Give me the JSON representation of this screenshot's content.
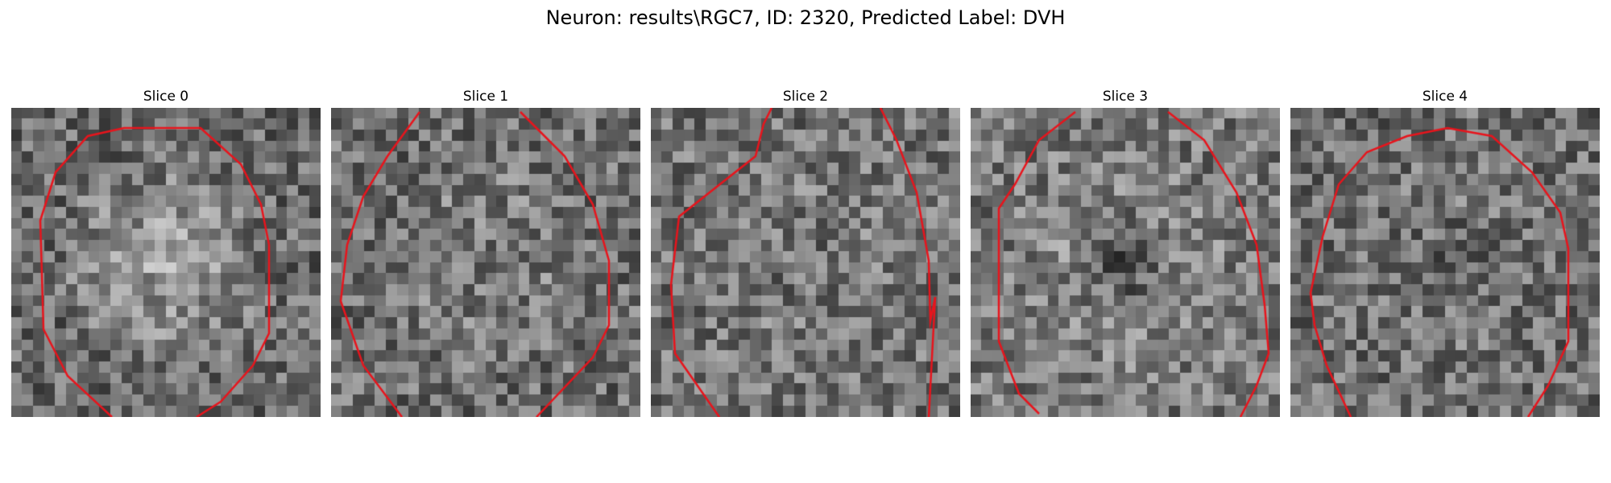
{
  "figure": {
    "title": "Neuron: results\\RGC7, ID: 2320, Predicted Label: DVH"
  },
  "panels": [
    {
      "title": "Slice 0"
    },
    {
      "title": "Slice 1"
    },
    {
      "title": "Slice 2"
    },
    {
      "title": "Slice 3"
    },
    {
      "title": "Slice 4"
    }
  ],
  "colors": {
    "contour": "#e8141c",
    "background": "#ffffff"
  }
}
